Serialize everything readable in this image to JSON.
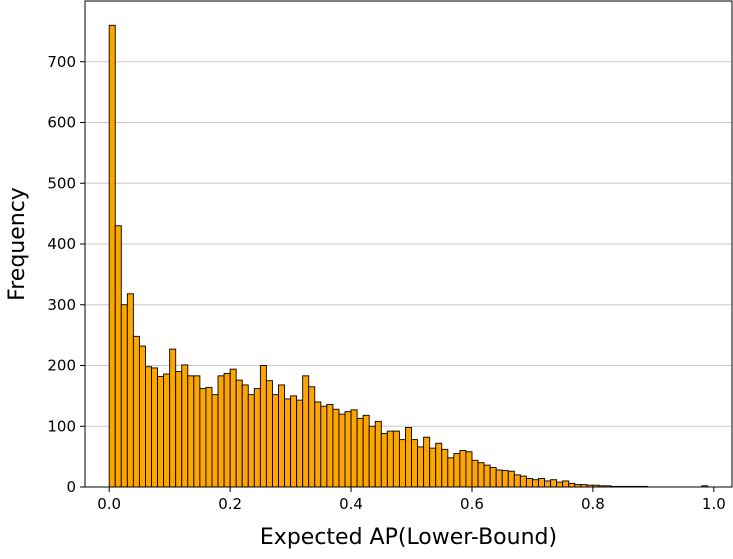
{
  "chart_data": {
    "type": "bar",
    "subtype": "histogram",
    "title": "",
    "xlabel": "Expected AP(Lower-Bound)",
    "ylabel": "Frequency",
    "xlim": [
      -0.04,
      1.03
    ],
    "ylim": [
      0,
      800
    ],
    "xticks": [
      0.0,
      0.2,
      0.4,
      0.6,
      0.8,
      1.0
    ],
    "xtick_labels": [
      "0.0",
      "0.2",
      "0.4",
      "0.6",
      "0.8",
      "1.0"
    ],
    "yticks": [
      0,
      100,
      200,
      300,
      400,
      500,
      600,
      700
    ],
    "ytick_labels": [
      "0",
      "100",
      "200",
      "300",
      "400",
      "500",
      "600",
      "700"
    ],
    "grid": "horizontal",
    "legend": "none",
    "bar_color": "#FFA500",
    "edge_color": "#000000",
    "bin_start": 0.0,
    "bin_width": 0.01,
    "values": [
      760,
      430,
      300,
      318,
      248,
      232,
      198,
      196,
      182,
      186,
      227,
      190,
      201,
      183,
      183,
      162,
      164,
      152,
      183,
      187,
      194,
      176,
      168,
      152,
      162,
      200,
      175,
      152,
      168,
      145,
      150,
      143,
      183,
      165,
      140,
      133,
      136,
      128,
      120,
      124,
      127,
      113,
      118,
      100,
      108,
      88,
      92,
      92,
      78,
      98,
      78,
      66,
      82,
      64,
      72,
      62,
      48,
      55,
      60,
      58,
      44,
      40,
      36,
      32,
      28,
      27,
      26,
      20,
      18,
      14,
      12,
      14,
      10,
      12,
      8,
      10,
      6,
      4,
      4,
      3,
      3,
      2,
      2,
      1,
      1,
      1,
      1,
      1,
      1,
      0,
      0,
      0,
      0,
      0,
      0,
      0,
      0,
      0,
      2
    ]
  }
}
